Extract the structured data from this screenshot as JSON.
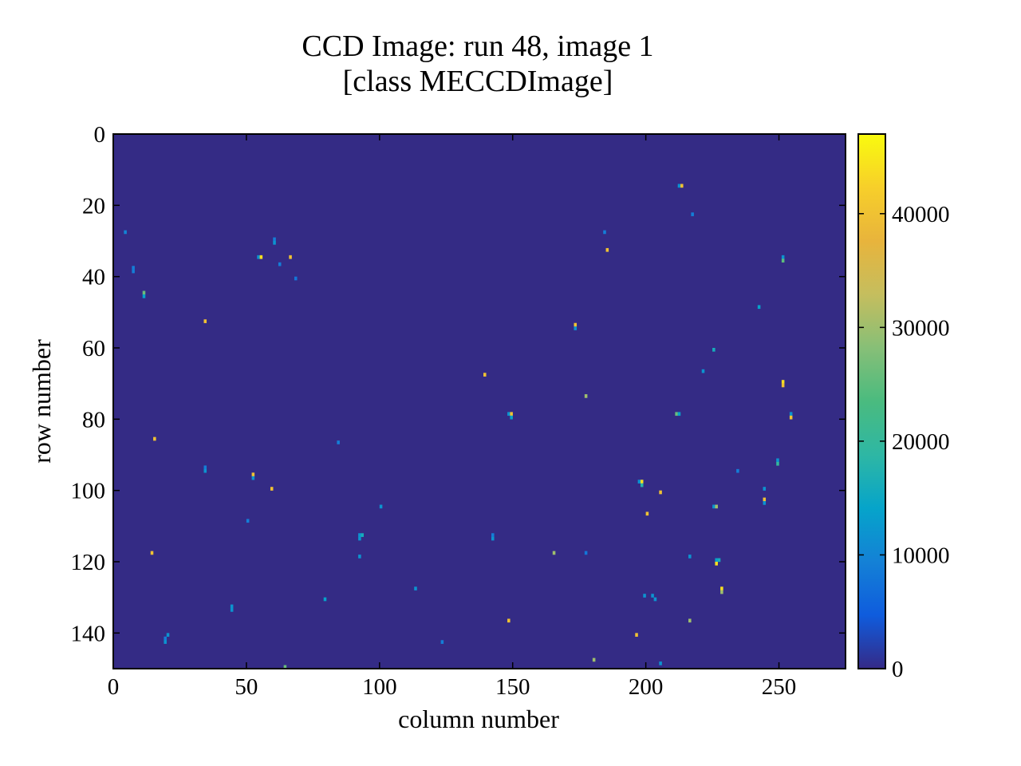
{
  "chart_data": {
    "type": "heatmap",
    "title_lines": [
      "CCD Image: run 48, image 1",
      "[class MECCDImage]"
    ],
    "xlabel": "column number",
    "ylabel": "row number",
    "xlim": [
      0,
      275
    ],
    "ylim": [
      150,
      0
    ],
    "x_ticks": [
      0,
      50,
      100,
      150,
      200,
      250
    ],
    "y_ticks": [
      0,
      20,
      40,
      60,
      80,
      100,
      120,
      140
    ],
    "colorbar": {
      "colormap": "parula",
      "range": [
        0,
        47000
      ],
      "ticks": [
        0,
        10000,
        20000,
        30000,
        40000
      ]
    },
    "background_value": 1200,
    "pixels": [
      {
        "x": 212,
        "y": 14,
        "v": 12000
      },
      {
        "x": 213,
        "y": 14,
        "v": 40000
      },
      {
        "x": 217,
        "y": 22,
        "v": 9000
      },
      {
        "x": 4,
        "y": 27,
        "v": 10000
      },
      {
        "x": 184,
        "y": 27,
        "v": 9000
      },
      {
        "x": 60,
        "y": 29,
        "v": 9000
      },
      {
        "x": 60,
        "y": 30,
        "v": 12000
      },
      {
        "x": 185,
        "y": 32,
        "v": 40000
      },
      {
        "x": 54,
        "y": 34,
        "v": 12000
      },
      {
        "x": 55,
        "y": 34,
        "v": 44000
      },
      {
        "x": 66,
        "y": 34,
        "v": 40000
      },
      {
        "x": 251,
        "y": 34,
        "v": 12000
      },
      {
        "x": 251,
        "y": 35,
        "v": 25000
      },
      {
        "x": 62,
        "y": 36,
        "v": 9000
      },
      {
        "x": 7,
        "y": 37,
        "v": 9000
      },
      {
        "x": 7,
        "y": 38,
        "v": 9000
      },
      {
        "x": 68,
        "y": 40,
        "v": 8000
      },
      {
        "x": 11,
        "y": 44,
        "v": 26000
      },
      {
        "x": 11,
        "y": 45,
        "v": 14000
      },
      {
        "x": 242,
        "y": 48,
        "v": 14000
      },
      {
        "x": 34,
        "y": 52,
        "v": 40000
      },
      {
        "x": 173,
        "y": 53,
        "v": 40000
      },
      {
        "x": 173,
        "y": 54,
        "v": 12000
      },
      {
        "x": 225,
        "y": 60,
        "v": 16000
      },
      {
        "x": 221,
        "y": 66,
        "v": 12000
      },
      {
        "x": 139,
        "y": 67,
        "v": 40000
      },
      {
        "x": 251,
        "y": 69,
        "v": 44000
      },
      {
        "x": 251,
        "y": 70,
        "v": 40000
      },
      {
        "x": 177,
        "y": 73,
        "v": 30000
      },
      {
        "x": 148,
        "y": 78,
        "v": 12000
      },
      {
        "x": 149,
        "y": 78,
        "v": 40000
      },
      {
        "x": 149,
        "y": 79,
        "v": 14000
      },
      {
        "x": 211,
        "y": 78,
        "v": 26000
      },
      {
        "x": 212,
        "y": 78,
        "v": 14000
      },
      {
        "x": 254,
        "y": 78,
        "v": 12000
      },
      {
        "x": 254,
        "y": 79,
        "v": 40000
      },
      {
        "x": 15,
        "y": 85,
        "v": 40000
      },
      {
        "x": 84,
        "y": 86,
        "v": 9000
      },
      {
        "x": 249,
        "y": 91,
        "v": 12000
      },
      {
        "x": 249,
        "y": 92,
        "v": 20000
      },
      {
        "x": 34,
        "y": 93,
        "v": 9000
      },
      {
        "x": 34,
        "y": 94,
        "v": 12000
      },
      {
        "x": 234,
        "y": 94,
        "v": 9000
      },
      {
        "x": 52,
        "y": 95,
        "v": 40000
      },
      {
        "x": 52,
        "y": 96,
        "v": 12000
      },
      {
        "x": 197,
        "y": 97,
        "v": 12000
      },
      {
        "x": 198,
        "y": 97,
        "v": 44000
      },
      {
        "x": 198,
        "y": 98,
        "v": 18000
      },
      {
        "x": 59,
        "y": 99,
        "v": 40000
      },
      {
        "x": 244,
        "y": 99,
        "v": 12000
      },
      {
        "x": 205,
        "y": 100,
        "v": 40000
      },
      {
        "x": 244,
        "y": 102,
        "v": 40000
      },
      {
        "x": 244,
        "y": 103,
        "v": 12000
      },
      {
        "x": 100,
        "y": 104,
        "v": 12000
      },
      {
        "x": 225,
        "y": 104,
        "v": 12000
      },
      {
        "x": 226,
        "y": 104,
        "v": 30000
      },
      {
        "x": 200,
        "y": 106,
        "v": 40000
      },
      {
        "x": 50,
        "y": 108,
        "v": 9000
      },
      {
        "x": 92,
        "y": 112,
        "v": 12000
      },
      {
        "x": 93,
        "y": 112,
        "v": 16000
      },
      {
        "x": 92,
        "y": 113,
        "v": 12000
      },
      {
        "x": 142,
        "y": 112,
        "v": 9000
      },
      {
        "x": 142,
        "y": 113,
        "v": 12000
      },
      {
        "x": 165,
        "y": 117,
        "v": 30000
      },
      {
        "x": 177,
        "y": 117,
        "v": 8000
      },
      {
        "x": 14,
        "y": 117,
        "v": 40000
      },
      {
        "x": 92,
        "y": 118,
        "v": 12000
      },
      {
        "x": 216,
        "y": 118,
        "v": 12000
      },
      {
        "x": 226,
        "y": 119,
        "v": 14000
      },
      {
        "x": 227,
        "y": 119,
        "v": 16000
      },
      {
        "x": 226,
        "y": 120,
        "v": 44000
      },
      {
        "x": 228,
        "y": 127,
        "v": 44000
      },
      {
        "x": 228,
        "y": 128,
        "v": 30000
      },
      {
        "x": 113,
        "y": 127,
        "v": 12000
      },
      {
        "x": 199,
        "y": 129,
        "v": 12000
      },
      {
        "x": 202,
        "y": 129,
        "v": 12000
      },
      {
        "x": 203,
        "y": 130,
        "v": 12000
      },
      {
        "x": 79,
        "y": 130,
        "v": 14000
      },
      {
        "x": 44,
        "y": 132,
        "v": 12000
      },
      {
        "x": 44,
        "y": 133,
        "v": 12000
      },
      {
        "x": 148,
        "y": 136,
        "v": 40000
      },
      {
        "x": 216,
        "y": 136,
        "v": 30000
      },
      {
        "x": 196,
        "y": 140,
        "v": 40000
      },
      {
        "x": 20,
        "y": 140,
        "v": 12000
      },
      {
        "x": 19,
        "y": 141,
        "v": 9000
      },
      {
        "x": 19,
        "y": 142,
        "v": 12000
      },
      {
        "x": 123,
        "y": 142,
        "v": 9000
      },
      {
        "x": 180,
        "y": 147,
        "v": 30000
      },
      {
        "x": 205,
        "y": 148,
        "v": 12000
      },
      {
        "x": 64,
        "y": 149,
        "v": 26000
      }
    ]
  }
}
